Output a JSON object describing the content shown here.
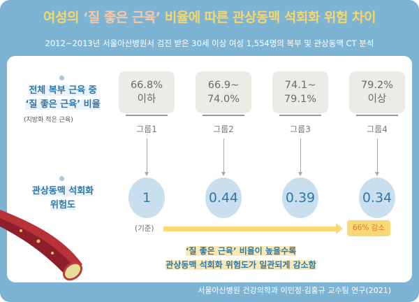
{
  "title": {
    "part1": "여성의 ",
    "highlight": "‘질 좋은 근육’",
    "part2": " 비율에 따른 관상동맥 석회화 위험 차이"
  },
  "subtitle": "2012~2013년 서울아산병원서 검진 받은 30세 이상 여성 1,554명의 복부 및 관상동맥 CT 분석",
  "row1": {
    "line1": "전체 복부 근육 중",
    "line2": "‘질 좋은 근육’ 비율",
    "note": "(지방화 적은 근육)"
  },
  "row2": {
    "line1": "관상동맥 석회화",
    "line2": "위험도"
  },
  "groups": [
    {
      "range1": "66.8%",
      "range2": "이하",
      "label": "그룹1",
      "risk": "1"
    },
    {
      "range1": "66.9~",
      "range2": "74.0%",
      "label": "그룹2",
      "risk": "0.44"
    },
    {
      "range1": "74.1~",
      "range2": "79.1%",
      "label": "그룹3",
      "risk": "0.39"
    },
    {
      "range1": "79.2%",
      "range2": "이상",
      "label": "그룹4",
      "risk": "0.34"
    }
  ],
  "baseline_label": "(기준)",
  "reduction_badge": "66% 감소",
  "caption": {
    "line1": "‘질 좋은 근육’ 비율이 높을수록",
    "line2": "관상동맥 석회화 위험도가 일관되게 감소함"
  },
  "source": "서울아산병원 건강의학과 이민정·김홍규 교수팀 연구(2021)",
  "colors": {
    "frame": "#7db4d4",
    "title": "#f7d76b",
    "accent": "#2f77a6",
    "highlight": "#f9d977",
    "badge_text": "#e07b28"
  }
}
